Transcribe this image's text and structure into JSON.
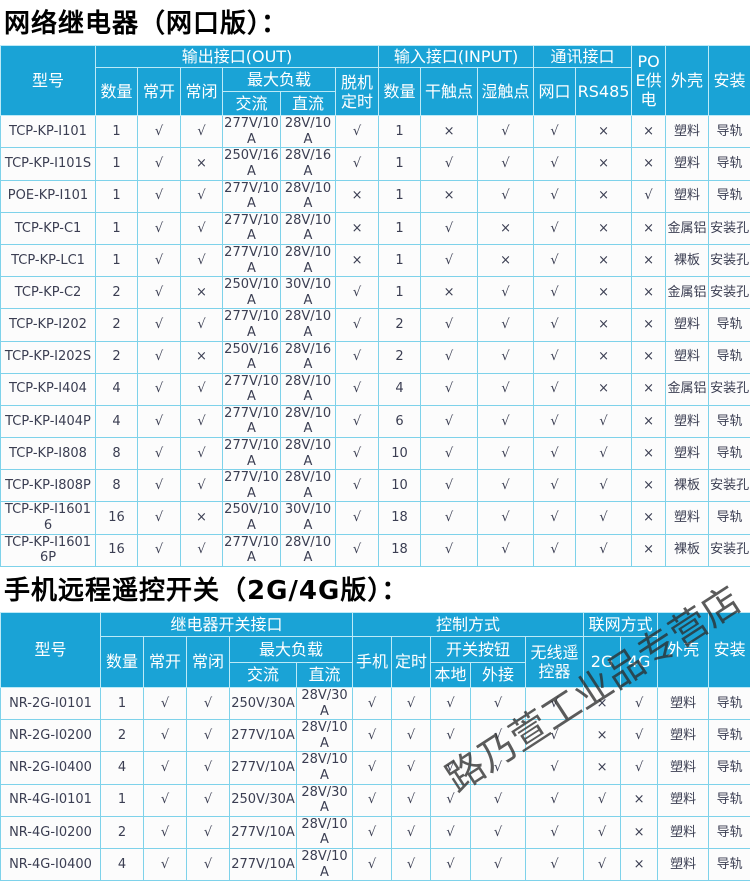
{
  "page": {
    "title1": "网络继电器（网口版）：",
    "title2": "手机远程遥控开关（2G/4G版）：",
    "watermark": "路乃萱工业品专营店"
  },
  "colors": {
    "header_bg": "#1aa3d6",
    "header_text": "#ffffff",
    "grid_border": "#7ed2ea",
    "cell_text": "#3b3e52",
    "title_text": "#000000",
    "watermark_text": "#2d2d2d"
  },
  "symbols": {
    "check": "√",
    "cross": "×"
  },
  "table1": {
    "header": {
      "model": "型号",
      "out_group": "输出接口(OUT)",
      "out_qty": "数量",
      "normally_open": "常开",
      "normally_closed": "常闭",
      "max_load": "最大负载",
      "ac": "交流",
      "dc": "直流",
      "offline_timer": "脱机定时",
      "in_group": "输入接口(INPUT)",
      "in_qty": "数量",
      "dry_contact": "干触点",
      "wet_contact": "湿触点",
      "comm_group": "通讯接口",
      "lan_port": "网口",
      "rs485": "RS485",
      "poe_power": "POE供电",
      "shell": "外壳",
      "install": "安装"
    },
    "rows": [
      [
        "TCP-KP-I101",
        "1",
        "√",
        "√",
        "277V/10A",
        "28V/10A",
        "√",
        "1",
        "×",
        "√",
        "√",
        "×",
        "×",
        "塑料",
        "导轨"
      ],
      [
        "TCP-KP-I101S",
        "1",
        "√",
        "×",
        "250V/16A",
        "28V/16A",
        "√",
        "1",
        "√",
        "√",
        "√",
        "×",
        "×",
        "塑料",
        "导轨"
      ],
      [
        "POE-KP-I101",
        "1",
        "√",
        "√",
        "277V/10A",
        "28V/10A",
        "×",
        "1",
        "×",
        "√",
        "√",
        "×",
        "√",
        "塑料",
        "导轨"
      ],
      [
        "TCP-KP-C1",
        "1",
        "√",
        "√",
        "277V/10A",
        "28V/10A",
        "×",
        "1",
        "√",
        "×",
        "√",
        "×",
        "×",
        "金属铝",
        "安装孔"
      ],
      [
        "TCP-KP-LC1",
        "1",
        "√",
        "√",
        "277V/10A",
        "28V/10A",
        "×",
        "1",
        "√",
        "×",
        "√",
        "×",
        "×",
        "裸板",
        "安装孔"
      ],
      [
        "TCP-KP-C2",
        "2",
        "√",
        "×",
        "250V/10A",
        "30V/10A",
        "√",
        "1",
        "×",
        "√",
        "√",
        "×",
        "×",
        "金属铝",
        "安装孔"
      ],
      [
        "TCP-KP-I202",
        "2",
        "√",
        "√",
        "277V/10A",
        "28V/10A",
        "√",
        "2",
        "√",
        "√",
        "√",
        "×",
        "×",
        "塑料",
        "导轨"
      ],
      [
        "TCP-KP-I202S",
        "2",
        "√",
        "×",
        "250V/16A",
        "28V/16A",
        "√",
        "2",
        "√",
        "√",
        "√",
        "×",
        "×",
        "塑料",
        "导轨"
      ],
      [
        "TCP-KP-I404",
        "4",
        "√",
        "√",
        "277V/10A",
        "28V/10A",
        "√",
        "4",
        "√",
        "√",
        "√",
        "×",
        "×",
        "金属铝",
        "安装孔"
      ],
      [
        "TCP-KP-I404P",
        "4",
        "√",
        "√",
        "277V/10A",
        "28V/10A",
        "√",
        "6",
        "√",
        "√",
        "√",
        "√",
        "×",
        "塑料",
        "导轨"
      ],
      [
        "TCP-KP-I808",
        "8",
        "√",
        "√",
        "277V/10A",
        "28V/10A",
        "√",
        "10",
        "√",
        "√",
        "√",
        "√",
        "×",
        "塑料",
        "导轨"
      ],
      [
        "TCP-KP-I808P",
        "8",
        "√",
        "√",
        "277V/10A",
        "28V/10A",
        "√",
        "10",
        "√",
        "√",
        "√",
        "√",
        "×",
        "裸板",
        "安装孔"
      ],
      [
        "TCP-KP-I16016",
        "16",
        "√",
        "×",
        "250V/10A",
        "30V/10A",
        "√",
        "18",
        "√",
        "√",
        "√",
        "√",
        "×",
        "塑料",
        "导轨"
      ],
      [
        "TCP-KP-I16016P",
        "16",
        "√",
        "√",
        "277V/10A",
        "28V/10A",
        "√",
        "18",
        "√",
        "√",
        "√",
        "√",
        "×",
        "裸板",
        "安装孔"
      ]
    ]
  },
  "table2": {
    "header": {
      "model": "型号",
      "relay_group": "继电器开关接口",
      "qty": "数量",
      "normally_open": "常开",
      "normally_closed": "常闭",
      "max_load": "最大负载",
      "ac": "交流",
      "dc": "直流",
      "control_group": "控制方式",
      "phone": "手机",
      "timer": "定时",
      "switch_btn_group": "开关按钮",
      "local": "本地",
      "external": "外接",
      "wireless_remote": "无线遥控器",
      "net_group": "联网方式",
      "g2": "2G",
      "g4": "4G",
      "shell": "外壳",
      "install": "安装"
    },
    "rows": [
      [
        "NR-2G-I0101",
        "1",
        "√",
        "√",
        "250V/30A",
        "28V/30A",
        "√",
        "√",
        "√",
        "√",
        "√",
        "×",
        "√",
        "塑料",
        "导轨"
      ],
      [
        "NR-2G-I0200",
        "2",
        "√",
        "√",
        "277V/10A",
        "28V/10A",
        "√",
        "√",
        "√",
        "√",
        "√",
        "×",
        "√",
        "塑料",
        "导轨"
      ],
      [
        "NR-2G-I0400",
        "4",
        "√",
        "√",
        "277V/10A",
        "28V/10A",
        "√",
        "√",
        "√",
        "√",
        "√",
        "×",
        "√",
        "塑料",
        "导轨"
      ],
      [
        "NR-4G-I0101",
        "1",
        "√",
        "√",
        "250V/30A",
        "28V/30A",
        "√",
        "√",
        "√",
        "√",
        "√",
        "√",
        "×",
        "塑料",
        "导轨"
      ],
      [
        "NR-4G-I0200",
        "2",
        "√",
        "√",
        "277V/10A",
        "28V/10A",
        "√",
        "√",
        "√",
        "√",
        "√",
        "√",
        "×",
        "塑料",
        "导轨"
      ],
      [
        "NR-4G-I0400",
        "4",
        "√",
        "√",
        "277V/10A",
        "28V/10A",
        "√",
        "√",
        "√",
        "√",
        "√",
        "√",
        "×",
        "塑料",
        "导轨"
      ]
    ]
  }
}
